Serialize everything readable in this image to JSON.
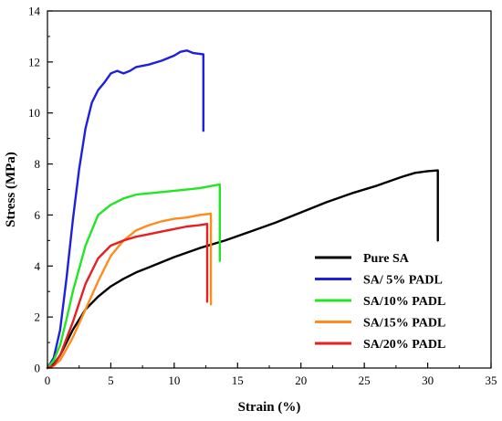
{
  "chart_data": {
    "type": "line",
    "xlabel": "Strain (%)",
    "ylabel": "Stress (MPa)",
    "xlim": [
      0,
      35
    ],
    "ylim": [
      0,
      14
    ],
    "xticks": [
      "0",
      "5",
      "10",
      "15",
      "20",
      "25",
      "30",
      "35"
    ],
    "yticks": [
      "0",
      "2",
      "4",
      "6",
      "8",
      "10",
      "12",
      "14"
    ],
    "grid": false,
    "legend_position": "bottom-right",
    "series": [
      {
        "name": "Pure SA",
        "color": "#000000",
        "x": [
          0,
          0.5,
          1,
          2,
          3,
          4,
          5,
          6,
          7,
          8,
          10,
          12,
          14,
          16,
          18,
          20,
          22,
          24,
          26,
          28,
          29,
          30,
          30.8,
          30.8
        ],
        "y": [
          0,
          0.15,
          0.5,
          1.5,
          2.3,
          2.8,
          3.2,
          3.5,
          3.75,
          3.95,
          4.35,
          4.7,
          5.0,
          5.35,
          5.7,
          6.1,
          6.5,
          6.85,
          7.15,
          7.5,
          7.65,
          7.72,
          7.75,
          5.0
        ]
      },
      {
        "name": "SA/ 5% PADL",
        "color": "#1f1fe0",
        "x": [
          0,
          0.5,
          1,
          1.5,
          2,
          2.5,
          3,
          3.5,
          4,
          4.5,
          5,
          5.5,
          6,
          6.5,
          7,
          8,
          9,
          10,
          10.5,
          11,
          11.5,
          12.3,
          12.3
        ],
        "y": [
          0,
          0.4,
          1.5,
          3.5,
          5.8,
          7.8,
          9.4,
          10.4,
          10.9,
          11.2,
          11.55,
          11.65,
          11.55,
          11.65,
          11.8,
          11.9,
          12.05,
          12.25,
          12.4,
          12.45,
          12.35,
          12.3,
          9.3
        ]
      },
      {
        "name": "SA/10% PADL",
        "color": "#22e622",
        "x": [
          0,
          0.5,
          1,
          1.5,
          2,
          3,
          4,
          5,
          6,
          7,
          8,
          10,
          12,
          13.6,
          13.6
        ],
        "y": [
          0,
          0.3,
          0.9,
          1.9,
          3.0,
          4.8,
          6.0,
          6.4,
          6.65,
          6.8,
          6.85,
          6.95,
          7.05,
          7.2,
          4.2
        ]
      },
      {
        "name": "SA/15% PADL",
        "color": "#ff8c1a",
        "x": [
          0,
          0.5,
          1,
          2,
          3,
          4,
          5,
          6,
          7,
          8,
          9,
          10,
          11,
          12,
          12.9,
          12.9
        ],
        "y": [
          0,
          0.1,
          0.3,
          1.2,
          2.3,
          3.4,
          4.4,
          5.0,
          5.4,
          5.6,
          5.75,
          5.85,
          5.9,
          6.0,
          6.05,
          2.5
        ]
      },
      {
        "name": "SA/20% PADL",
        "color": "#e62020",
        "x": [
          0,
          0.5,
          1,
          2,
          3,
          4,
          5,
          6,
          7,
          8,
          9,
          10,
          11,
          12,
          12.6,
          12.6
        ],
        "y": [
          0,
          0.1,
          0.5,
          1.8,
          3.3,
          4.3,
          4.8,
          5.0,
          5.15,
          5.25,
          5.35,
          5.45,
          5.55,
          5.6,
          5.65,
          2.6
        ]
      }
    ]
  }
}
